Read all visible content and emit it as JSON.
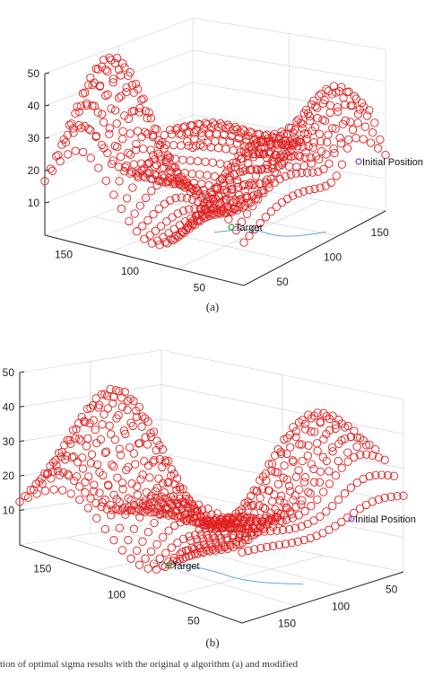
{
  "figure": {
    "footer_text": "tion of optimal sigma results with the original φ algorithm (a) and modified"
  },
  "chart_data": [
    {
      "type": "scatter",
      "subtype": "3d-terrain-mesh",
      "caption": "(a)",
      "marker": "circle",
      "marker_color": "#e02020",
      "grid": true,
      "z_ticks": [
        "10",
        "20",
        "30",
        "40",
        "50"
      ],
      "x_ticks": [
        "150",
        "100",
        "50"
      ],
      "y_ticks": [
        "50",
        "100",
        "150"
      ],
      "zlim": [
        0,
        50
      ],
      "annotations": [
        {
          "label": "Initial Position",
          "color": "#7a3fd0"
        },
        {
          "label": "Target",
          "color": "#30a030"
        }
      ],
      "path": {
        "visible": true,
        "color": "#5aaad8"
      }
    },
    {
      "type": "scatter",
      "subtype": "3d-terrain-mesh",
      "caption": "(b)",
      "marker": "circle",
      "marker_color": "#e02020",
      "grid": true,
      "z_ticks": [
        "10",
        "20",
        "30",
        "40",
        "50"
      ],
      "x_ticks": [
        "150",
        "100",
        "50"
      ],
      "y_ticks": [
        "150",
        "100",
        "50"
      ],
      "zlim": [
        0,
        50
      ],
      "annotations": [
        {
          "label": "Initial Position",
          "color": "#7a3fd0"
        },
        {
          "label": "Target",
          "color": "#30a030"
        }
      ],
      "path": {
        "visible": true,
        "color": "#5aaad8"
      }
    }
  ]
}
